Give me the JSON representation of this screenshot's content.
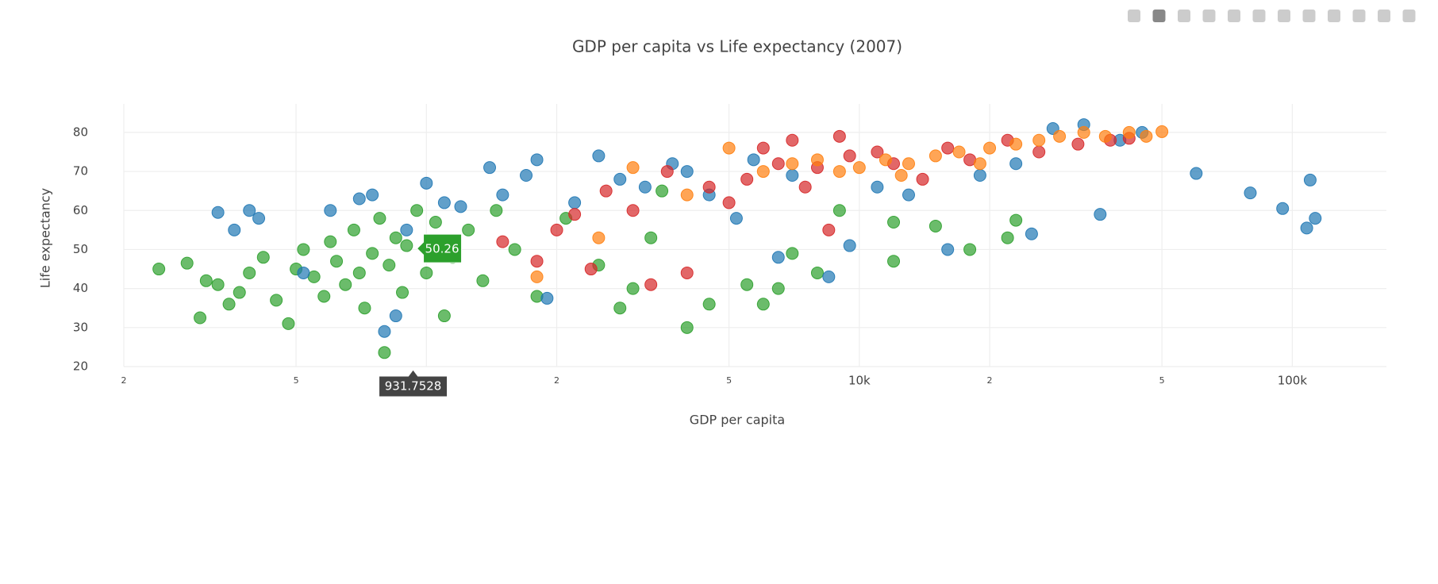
{
  "chart_data": {
    "type": "scatter",
    "title": "GDP per capita vs Life expectancy (2007)",
    "x_label": "GDP per capita",
    "y_label": "Life expectancy",
    "log_x": true,
    "grid": true,
    "xlim": [
      200,
      165000
    ],
    "ylim": [
      20,
      87.3
    ],
    "xticks": [
      {
        "value": 200,
        "label": "2"
      },
      {
        "value": 500,
        "label": "5"
      },
      1000,
      {
        "value": 2000,
        "label": "2"
      },
      {
        "value": 5000,
        "label": "5"
      },
      {
        "value": 10000,
        "label": "10k"
      },
      {
        "value": 20000,
        "label": "2"
      },
      {
        "value": 50000,
        "label": "5"
      },
      {
        "value": 100000,
        "label": "100k"
      }
    ],
    "yticks": [
      20,
      30,
      40,
      50,
      60,
      70,
      80
    ],
    "series": [
      {
        "color": "#2ca02c",
        "x": [
          241,
          280,
          300,
          310,
          330,
          350,
          370,
          390,
          420,
          450,
          480,
          500,
          520,
          550,
          580,
          600,
          620,
          650,
          680,
          700,
          720,
          750,
          780,
          800,
          820,
          850,
          880,
          900,
          950,
          1000,
          1050,
          1100,
          1150,
          1250,
          1350,
          1450,
          1600,
          1800,
          2100,
          2500,
          3000,
          3300,
          4000,
          4500,
          5500,
          6000,
          7000,
          8000,
          9000,
          12000,
          15000,
          18000,
          22000,
          23000,
          12000,
          6500,
          3500,
          2800
        ],
        "values": [
          45,
          46.5,
          32.5,
          42,
          41,
          36,
          39,
          44,
          48,
          37,
          31,
          45,
          50,
          43,
          38,
          52,
          47,
          41,
          55,
          44,
          35,
          49,
          58,
          23.6,
          46,
          53,
          39,
          51,
          60,
          44,
          57,
          33,
          48,
          55,
          42,
          60,
          50,
          38,
          58,
          46,
          40,
          53,
          30,
          36,
          41,
          36,
          49,
          44,
          60,
          57,
          56,
          50,
          53,
          57.5,
          47,
          40,
          65,
          35
        ]
      },
      {
        "color": "#1f77b4",
        "x": [
          330,
          360,
          390,
          410,
          520,
          600,
          700,
          750,
          800,
          850,
          900,
          1000,
          1100,
          1200,
          1400,
          1500,
          1700,
          1800,
          2200,
          2500,
          2800,
          3200,
          3700,
          4000,
          4500,
          5200,
          5700,
          6500,
          7000,
          8500,
          9500,
          11000,
          13000,
          16000,
          19000,
          23000,
          25000,
          28000,
          33000,
          36000,
          45000,
          60000,
          80000,
          95000,
          108000,
          113000,
          110000,
          40000,
          1900
        ],
        "values": [
          59.5,
          55,
          60,
          58,
          44,
          60,
          63,
          64,
          29,
          33,
          55,
          67,
          62,
          61,
          71,
          64,
          69,
          73,
          62,
          74,
          68,
          66,
          72,
          70,
          64,
          58,
          73,
          48,
          69,
          43,
          51,
          66,
          64,
          50,
          69,
          72,
          54,
          81,
          82,
          59,
          80,
          69.5,
          64.5,
          60.5,
          55.5,
          58,
          67.8,
          78,
          37.5
        ]
      },
      {
        "color": "#d62728",
        "x": [
          1500,
          1800,
          2000,
          2200,
          2600,
          3000,
          3300,
          3600,
          4000,
          4500,
          5000,
          5500,
          6000,
          6500,
          7000,
          7500,
          8000,
          9000,
          9500,
          11000,
          12000,
          14000,
          16000,
          18000,
          22000,
          26000,
          32000,
          38000,
          42000,
          2400,
          8500
        ],
        "values": [
          52,
          47,
          55,
          59,
          65,
          60,
          41,
          70,
          44,
          66,
          62,
          68,
          76,
          72,
          78,
          66,
          71,
          79,
          74,
          75,
          72,
          68,
          76,
          73,
          78,
          75,
          77,
          78,
          78.5,
          45,
          55
        ]
      },
      {
        "color": "#ff7f0e",
        "x": [
          1800,
          2500,
          3000,
          4000,
          5000,
          6000,
          7000,
          8000,
          9000,
          10000,
          11500,
          13000,
          15000,
          17000,
          20000,
          23000,
          26000,
          29000,
          33000,
          37000,
          42000,
          46000,
          50000,
          19000,
          12500
        ],
        "values": [
          43,
          53,
          71,
          64,
          76,
          70,
          72,
          73,
          70,
          71,
          73,
          72,
          74,
          75,
          76,
          77,
          78,
          79,
          80,
          79,
          80,
          79,
          80.2,
          72,
          69
        ]
      }
    ],
    "hover": {
      "x": 931.7528,
      "y": 50.26,
      "color": "#2ca02c"
    }
  }
}
